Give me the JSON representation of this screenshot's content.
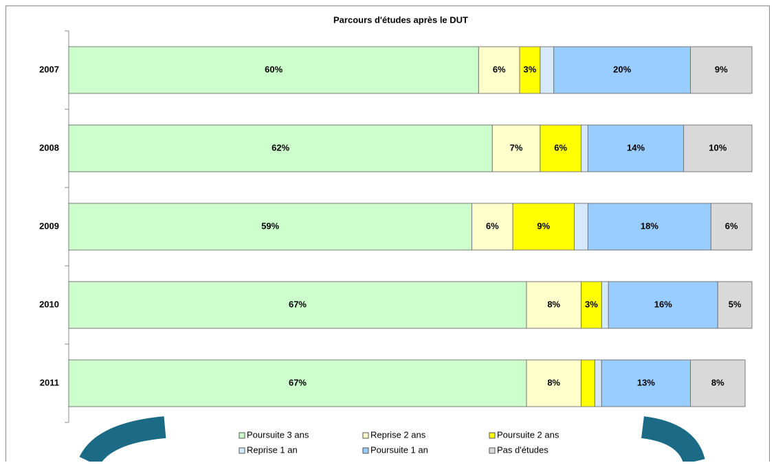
{
  "chart_data": {
    "type": "stacked-bar-horizontal",
    "title": "Parcours d'études après le DUT",
    "categories": [
      "2007",
      "2008",
      "2009",
      "2010",
      "2011"
    ],
    "xlim": [
      0,
      100
    ],
    "series": [
      {
        "name": "Poursuite 3 ans",
        "color": "#ccffcc",
        "values": [
          60,
          62,
          59,
          67,
          67
        ],
        "value_labels": [
          "60%",
          "62%",
          "59%",
          "67%",
          "67%"
        ]
      },
      {
        "name": "Reprise 2 ans",
        "color": "#ffffcc",
        "values": [
          6,
          7,
          6,
          8,
          8
        ],
        "value_labels": [
          "6%",
          "7%",
          "6%",
          "8%",
          "8%"
        ]
      },
      {
        "name": "Poursuite 2 ans",
        "color": "#ffff00",
        "values": [
          3,
          6,
          9,
          3,
          2
        ],
        "value_labels": [
          "3%",
          "6%",
          "9%",
          "3%",
          null
        ]
      },
      {
        "name": "Reprise 1 an",
        "color": "#d6e9fb",
        "values": [
          2,
          1,
          2,
          1,
          1
        ],
        "value_labels": [
          null,
          null,
          null,
          null,
          null
        ]
      },
      {
        "name": "Poursuite 1 an",
        "color": "#99ccff",
        "values": [
          20,
          14,
          18,
          16,
          13
        ],
        "value_labels": [
          "20%",
          "14%",
          "18%",
          "16%",
          "13%"
        ]
      },
      {
        "name": "Pas d'études",
        "color": "#d9d9d9",
        "values": [
          9,
          10,
          6,
          5,
          8
        ],
        "value_labels": [
          "9%",
          "10%",
          "6%",
          "5%",
          "8%"
        ]
      }
    ]
  }
}
